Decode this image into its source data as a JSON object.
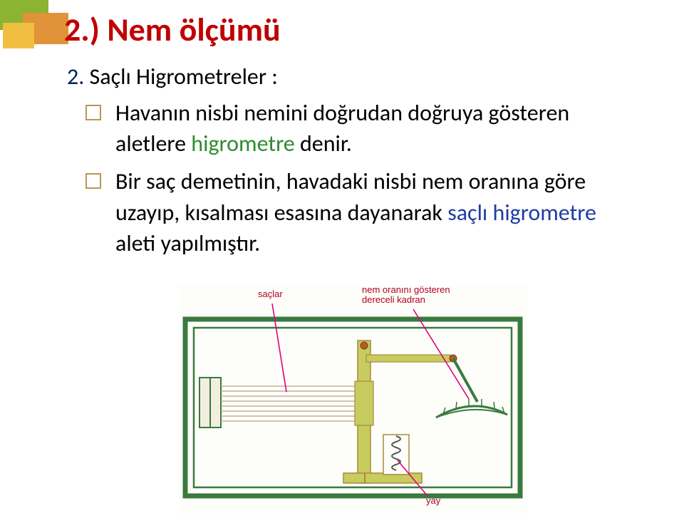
{
  "colors": {
    "title": "#c00000",
    "subtitle_number": "#002060",
    "subtitle_text": "#000000",
    "bullet_box_border": "#b99753",
    "body_black": "#000000",
    "body_green": "#2e8b2e",
    "body_blue": "#1f3da0",
    "corner_green": "#8cb332",
    "corner_orange": "#e1933a",
    "corner_yellow": "#f0bf41",
    "diagram_frame": "#3a7a3f",
    "diagram_rod_fill": "#c7cc5e",
    "diagram_rod_dark": "#a88a3a",
    "diagram_leader": "#e2007a",
    "diagram_label_red": "#b00020",
    "diagram_spring": "#555555",
    "diagram_hair": "#c0a080"
  },
  "title": "2.) Nem ölçümü",
  "subtitle_number": "2. ",
  "subtitle_text": "Saçlı Higrometreler :",
  "bullets": [
    {
      "segments": [
        {
          "text": "Havanın nisbi nemini doğrudan doğruya gösteren aletlere ",
          "color": "body_black"
        },
        {
          "text": "higrometre ",
          "color": "body_green"
        },
        {
          "text": "denir.",
          "color": "body_black"
        }
      ]
    },
    {
      "segments": [
        {
          "text": "Bir saç demetinin, havadaki nisbi nem oranına göre uzayıp, kısalması esasına dayanarak ",
          "color": "body_black"
        },
        {
          "text": "saçlı higrometre ",
          "color": "body_blue"
        },
        {
          "text": "aleti yapılmıştır.",
          "color": "body_black"
        }
      ]
    }
  ],
  "diagram": {
    "label_left": "saçlar",
    "label_right_line1": "nem oranını gösteren",
    "label_right_line2": "dereceli kadran",
    "label_bottom": "yay"
  }
}
